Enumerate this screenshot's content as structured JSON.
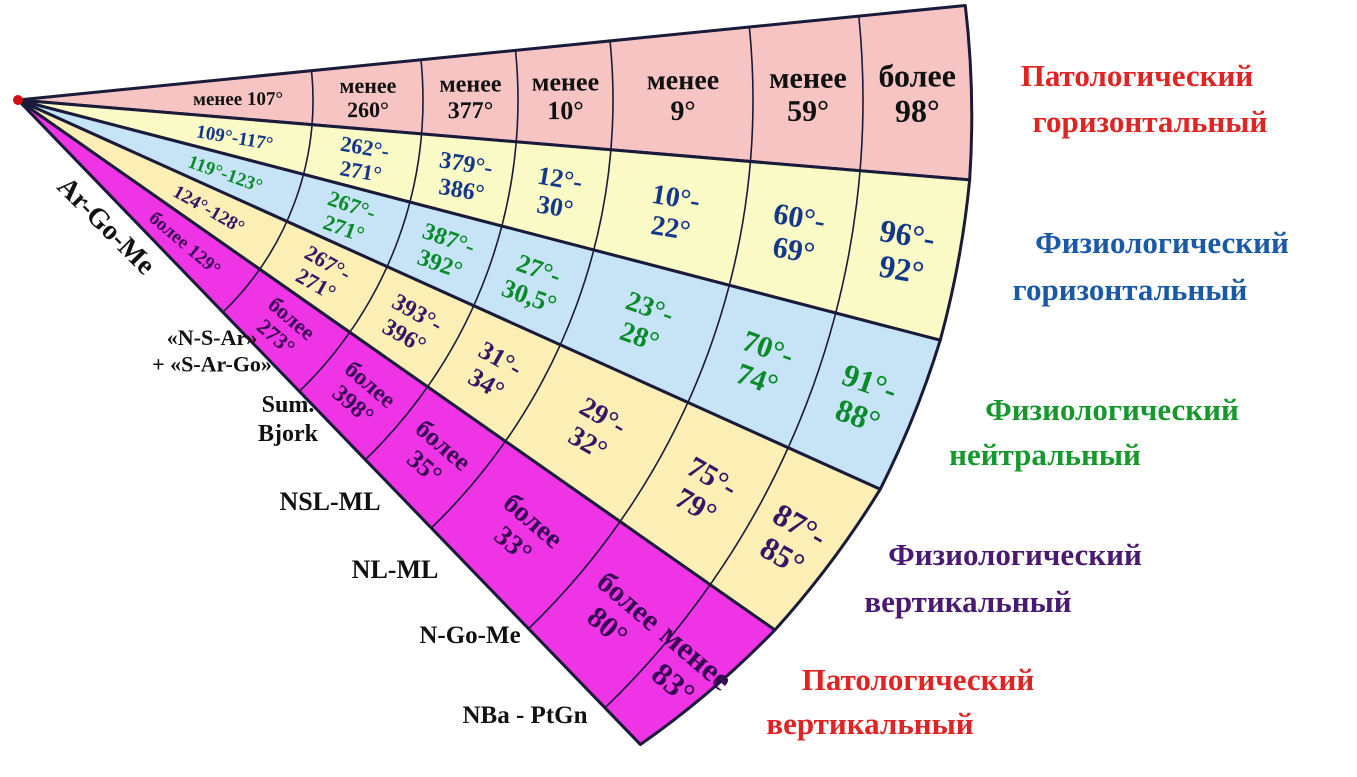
{
  "colors": {
    "band_fills": [
      "#f7c4c4",
      "#fafac6",
      "#c7e4f6",
      "#fcefb6",
      "#ee34e4"
    ],
    "band_text": [
      "#111111",
      "#14378a",
      "#0b8a2c",
      "#3a1464",
      "#3a0454"
    ],
    "type_labels": [
      "#e02424",
      "#1a58a8",
      "#17982c",
      "#4a1a72",
      "#e02424"
    ],
    "outline": "#1a1a3a",
    "origin_dot": "#d01010"
  },
  "parameters": [
    {
      "lines": [
        "Ar-Go-Me"
      ]
    },
    {
      "lines": [
        "«N-S-Ar»",
        "+ «S-Ar-Go»"
      ]
    },
    {
      "lines": [
        "Sum.",
        "Bjork"
      ]
    },
    {
      "lines": [
        "NSL-ML"
      ]
    },
    {
      "lines": [
        "NL-ML"
      ]
    },
    {
      "lines": [
        "N-Go-Me"
      ]
    },
    {
      "lines": [
        "NBa - PtGn"
      ]
    }
  ],
  "types": [
    {
      "lines": [
        "Патологический",
        "горизонтальный"
      ]
    },
    {
      "lines": [
        "Физиологический",
        "горизонтальный"
      ]
    },
    {
      "lines": [
        "Физиологический",
        "нейтральный"
      ]
    },
    {
      "lines": [
        "Физиологический",
        "вертикальный"
      ]
    },
    {
      "lines": [
        "Патологический",
        "вертикальный"
      ]
    }
  ],
  "rows": [
    {
      "cells": [
        [
          "менее 107°"
        ],
        [
          "менее",
          "260°"
        ],
        [
          "менее",
          "377°"
        ],
        [
          "менее",
          "10°"
        ],
        [
          "менее",
          "9°"
        ],
        [
          "менее",
          "59°"
        ],
        [
          "более",
          "98°"
        ]
      ]
    },
    {
      "cells": [
        [
          "109°-117°"
        ],
        [
          "262°-",
          "271°"
        ],
        [
          "379°-",
          "386°"
        ],
        [
          "12°-",
          "30°"
        ],
        [
          "10°-",
          "22°"
        ],
        [
          "60°-",
          "69°"
        ],
        [
          "96°-",
          "92°"
        ]
      ]
    },
    {
      "cells": [
        [
          "119°-123°"
        ],
        [
          "267°-",
          "271°"
        ],
        [
          "387°-",
          "392°"
        ],
        [
          "27°-",
          "30,5°"
        ],
        [
          "23°-",
          "28°"
        ],
        [
          "70°-",
          "74°"
        ],
        [
          "91°-",
          "88°"
        ]
      ]
    },
    {
      "cells": [
        [
          "124°-128°"
        ],
        [
          "267°-",
          "271°"
        ],
        [
          "393°-",
          "396°"
        ],
        [
          "31°-",
          "34°"
        ],
        [
          "29°-",
          "32°"
        ],
        [
          "75°-",
          "79°"
        ],
        [
          "87°-",
          "85°"
        ]
      ]
    },
    {
      "cells": [
        [
          "более 129°"
        ],
        [
          "более",
          "273°"
        ],
        [
          "более",
          "398°"
        ],
        [
          "более",
          "35°"
        ],
        [
          "более",
          "33°"
        ],
        [
          "более",
          "80°"
        ],
        [
          "менее",
          "83°"
        ]
      ]
    }
  ]
}
